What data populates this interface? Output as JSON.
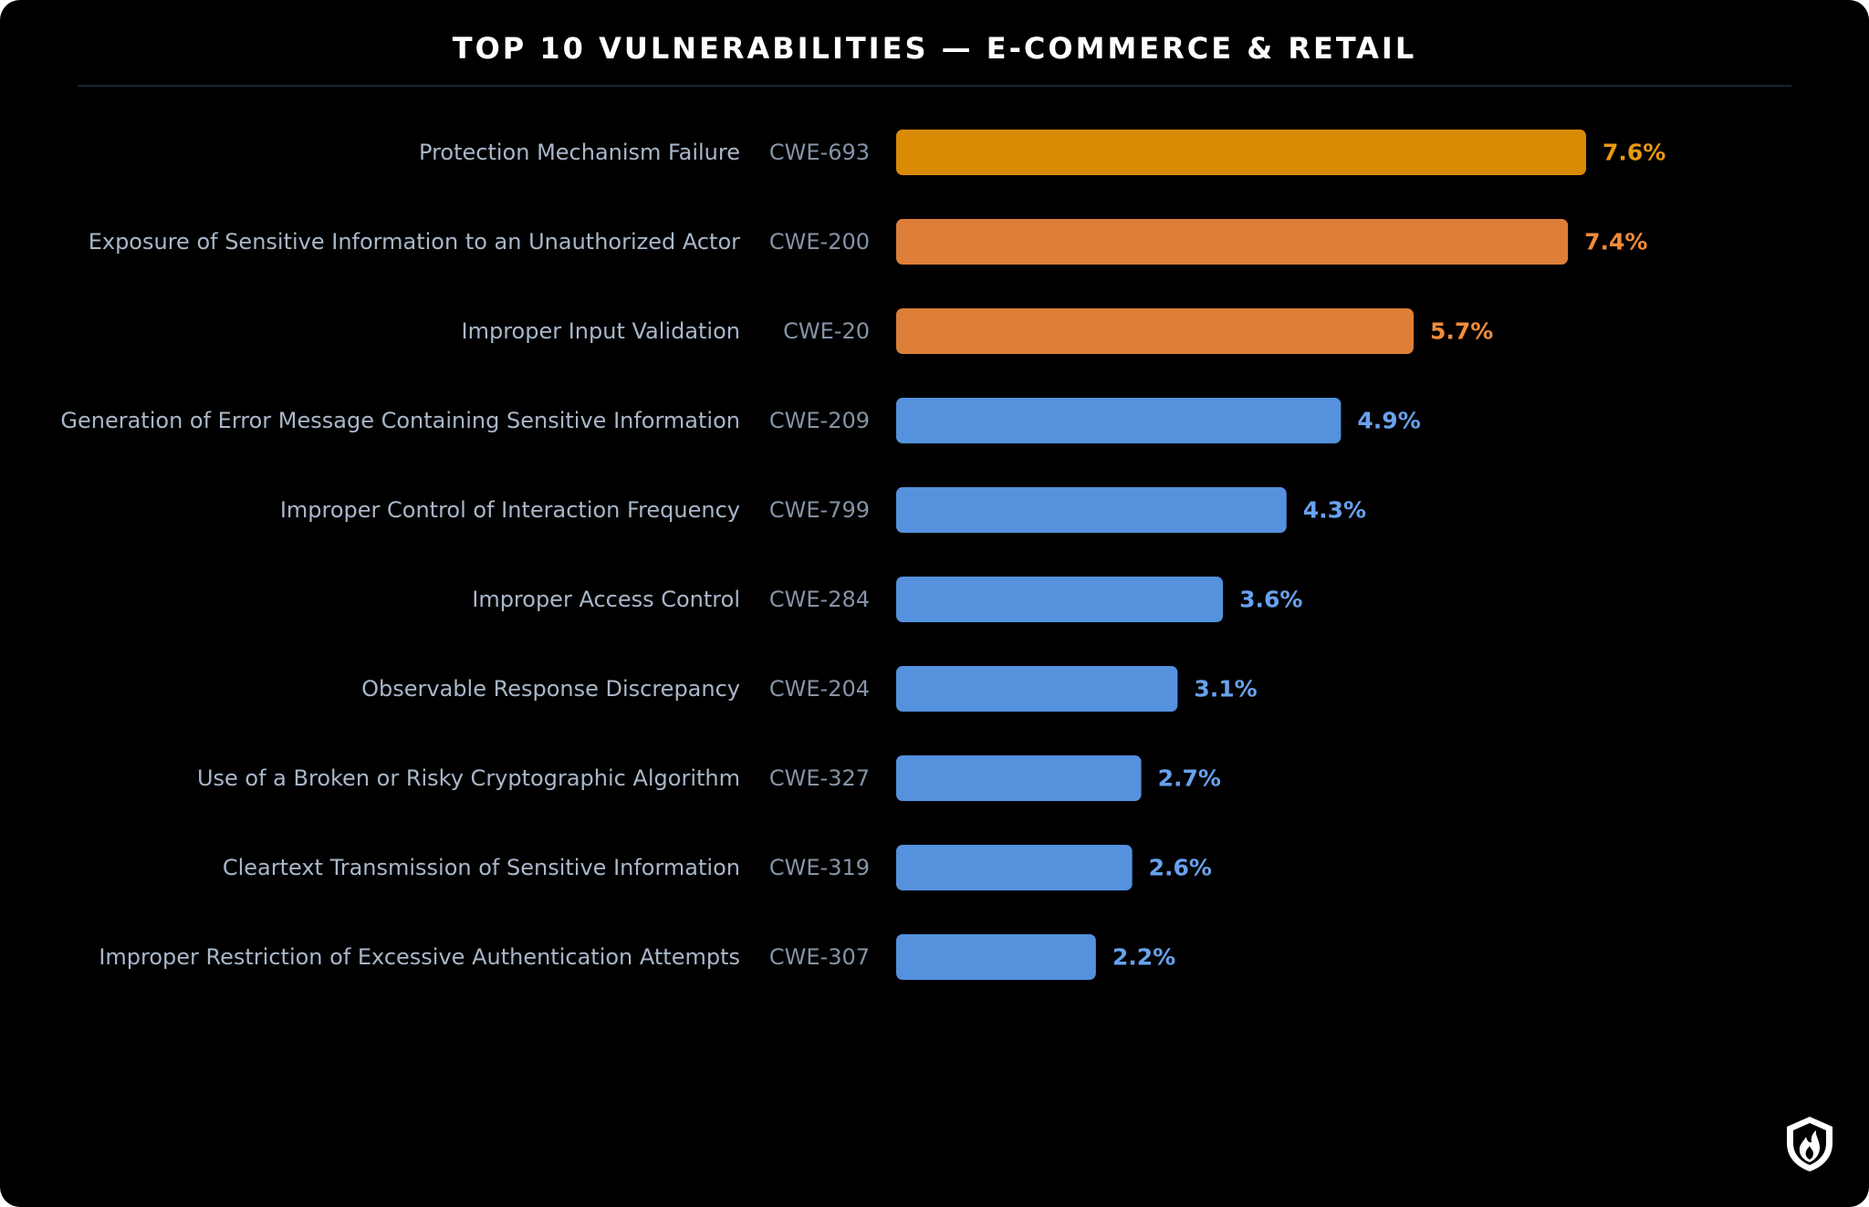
{
  "title": "TOP 10 VULNERABILITIES — E-COMMERCE & RETAIL",
  "colors": {
    "background": "#000000",
    "rule": "#1b2433",
    "name_text": "#a9b7c9",
    "cwe_text": "#8593a6",
    "amber": "#d98b06",
    "orange": "#dd7f38",
    "blue": "#5591dd",
    "blue_label": "#68a2ee"
  },
  "logo_icon": "shield-flame-icon",
  "chart_data": {
    "type": "bar",
    "orientation": "horizontal",
    "xlim": [
      0,
      7.6
    ],
    "value_suffix": "%",
    "categories": [
      {
        "name": "Protection Mechanism Failure",
        "cwe": "CWE-693",
        "value": 7.6,
        "label": "7.6%",
        "color": "#d98b06",
        "label_color": "#e89a10"
      },
      {
        "name": "Exposure of Sensitive Information to an Unauthorized Actor",
        "cwe": "CWE-200",
        "value": 7.4,
        "label": "7.4%",
        "color": "#dd7f38",
        "label_color": "#f08c3c"
      },
      {
        "name": "Improper Input Validation",
        "cwe": "CWE-20",
        "value": 5.7,
        "label": "5.7%",
        "color": "#dd7f38",
        "label_color": "#f08c3c"
      },
      {
        "name": "Generation of Error Message Containing Sensitive Information",
        "cwe": "CWE-209",
        "value": 4.9,
        "label": "4.9%",
        "color": "#5591dd",
        "label_color": "#68a2ee"
      },
      {
        "name": "Improper Control of Interaction Frequency",
        "cwe": "CWE-799",
        "value": 4.3,
        "label": "4.3%",
        "color": "#5591dd",
        "label_color": "#68a2ee"
      },
      {
        "name": "Improper Access Control",
        "cwe": "CWE-284",
        "value": 3.6,
        "label": "3.6%",
        "color": "#5591dd",
        "label_color": "#68a2ee"
      },
      {
        "name": "Observable Response Discrepancy",
        "cwe": "CWE-204",
        "value": 3.1,
        "label": "3.1%",
        "color": "#5591dd",
        "label_color": "#68a2ee"
      },
      {
        "name": "Use of a Broken or Risky Cryptographic Algorithm",
        "cwe": "CWE-327",
        "value": 2.7,
        "label": "2.7%",
        "color": "#5591dd",
        "label_color": "#68a2ee"
      },
      {
        "name": "Cleartext Transmission of Sensitive Information",
        "cwe": "CWE-319",
        "value": 2.6,
        "label": "2.6%",
        "color": "#5591dd",
        "label_color": "#68a2ee"
      },
      {
        "name": "Improper Restriction of Excessive Authentication Attempts",
        "cwe": "CWE-307",
        "value": 2.2,
        "label": "2.2%",
        "color": "#5591dd",
        "label_color": "#68a2ee"
      }
    ]
  }
}
